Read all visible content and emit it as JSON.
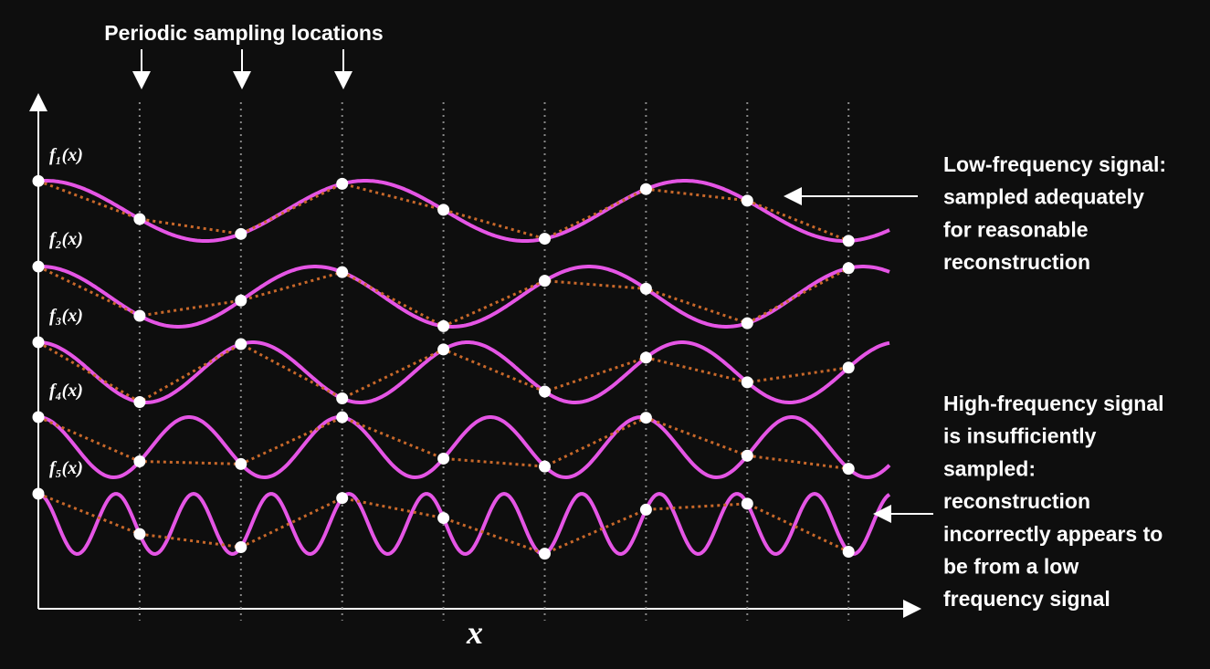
{
  "title": "Periodic sampling locations",
  "signals": [
    {
      "label": "f₁(x)"
    },
    {
      "label": "f₂(x)"
    },
    {
      "label": "f₃(x)"
    },
    {
      "label": "f₄(x)"
    },
    {
      "label": "f₅(x)"
    }
  ],
  "x_axis_label": "x",
  "annotations": [
    {
      "lines": [
        "Low-frequency signal:",
        "sampled adequately",
        "for reasonable",
        "reconstruction"
      ]
    },
    {
      "lines": [
        "High-frequency signal",
        "is insufficiently",
        "sampled:",
        "reconstruction",
        "incorrectly appears to",
        "be from a low",
        "frequency signal"
      ]
    }
  ]
}
